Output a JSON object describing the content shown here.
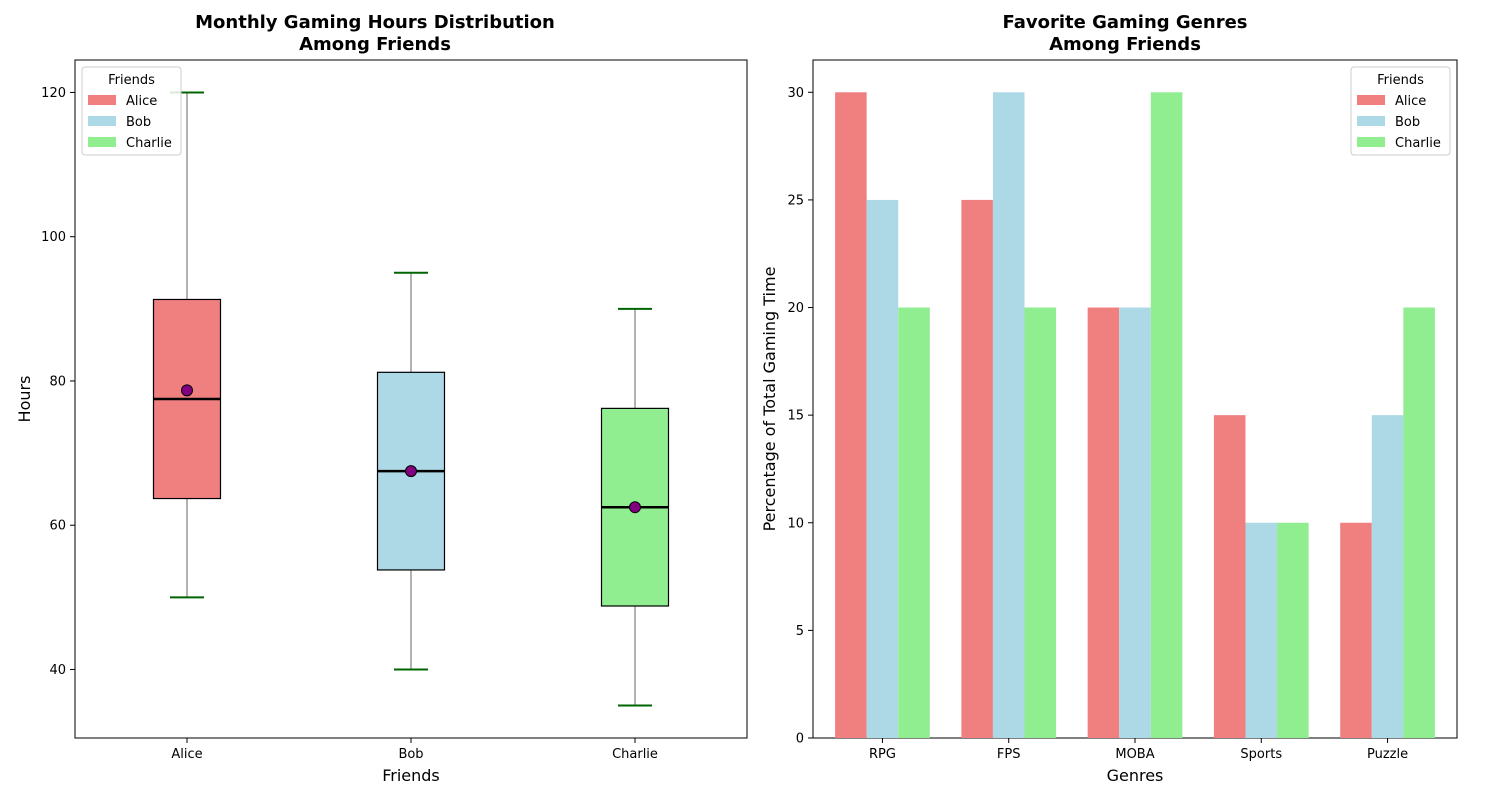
{
  "chart_data": [
    {
      "type": "box",
      "title_line1": "Monthly Gaming Hours Distribution",
      "title_line2": "Among Friends",
      "xlabel": "Friends",
      "ylabel": "Hours",
      "ylim": [
        30.5,
        124.5
      ],
      "yticks": [
        40,
        60,
        80,
        100,
        120
      ],
      "categories": [
        "Alice",
        "Bob",
        "Charlie"
      ],
      "boxes": [
        {
          "name": "Alice",
          "whisker_low": 50,
          "q1": 63.7,
          "median": 77.5,
          "mean": 78.7,
          "q3": 91.3,
          "whisker_high": 120,
          "color": "#f08080"
        },
        {
          "name": "Bob",
          "whisker_low": 40,
          "q1": 53.8,
          "median": 67.5,
          "mean": 67.5,
          "q3": 81.2,
          "whisker_high": 95,
          "color": "#add8e6"
        },
        {
          "name": "Charlie",
          "whisker_low": 35,
          "q1": 48.8,
          "median": 62.5,
          "mean": 62.5,
          "q3": 76.2,
          "whisker_high": 90,
          "color": "#90ee90"
        }
      ],
      "legend": {
        "title": "Friends",
        "position": "top-left",
        "entries": [
          "Alice",
          "Bob",
          "Charlie"
        ]
      },
      "colors": {
        "whisker": "#999999",
        "cap": "#006400",
        "mean": "#800080"
      }
    },
    {
      "type": "bar",
      "title_line1": "Favorite Gaming Genres",
      "title_line2": "Among Friends",
      "xlabel": "Genres",
      "ylabel": "Percentage of Total Gaming Time",
      "ylim": [
        0,
        31.5
      ],
      "yticks": [
        0,
        5,
        10,
        15,
        20,
        25,
        30
      ],
      "categories": [
        "RPG",
        "FPS",
        "MOBA",
        "Sports",
        "Puzzle"
      ],
      "series": [
        {
          "name": "Alice",
          "values": [
            30,
            25,
            20,
            15,
            10
          ],
          "color": "#f08080"
        },
        {
          "name": "Bob",
          "values": [
            25,
            30,
            20,
            10,
            15
          ],
          "color": "#add8e6"
        },
        {
          "name": "Charlie",
          "values": [
            20,
            20,
            30,
            10,
            20
          ],
          "color": "#90ee90"
        }
      ],
      "legend": {
        "title": "Friends",
        "position": "top-right",
        "entries": [
          "Alice",
          "Bob",
          "Charlie"
        ]
      }
    }
  ]
}
